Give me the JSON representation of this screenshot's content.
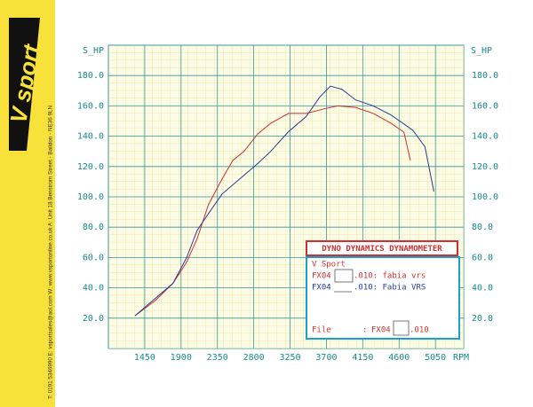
{
  "banner": {
    "logo": "V sport",
    "contact": "T: 0191 5346990   E: vsportsales@aol.com   W: www.vsportonline.co.uk   A: Unit 18 Benstrom Street - Baildon - NE36 9LN"
  },
  "chart_data": {
    "type": "line",
    "y_label": "S_HP",
    "x_label": "RPM",
    "xlim": [
      1000,
      5400
    ],
    "xticks": [
      1450,
      1900,
      2350,
      2800,
      3250,
      3700,
      4150,
      4600,
      5050
    ],
    "ylim": [
      0,
      200
    ],
    "yticks": [
      {
        "value": 20,
        "label": "20.0"
      },
      {
        "value": 40,
        "label": "40.0"
      },
      {
        "value": 60,
        "label": "60.0"
      },
      {
        "value": 80,
        "label": "80.0"
      },
      {
        "value": 100,
        "label": "100.0"
      },
      {
        "value": 120,
        "label": "120.0"
      },
      {
        "value": 140,
        "label": "140.0"
      },
      {
        "value": 160,
        "label": "160.0"
      },
      {
        "value": 180,
        "label": "180.0"
      }
    ],
    "grid": true,
    "series": [
      {
        "name": ".010: fabia vrs",
        "color": "#d03030",
        "x": [
          1330,
          1580,
          1800,
          1970,
          2100,
          2240,
          2410,
          2540,
          2680,
          2850,
          3010,
          3230,
          3450,
          3670,
          3840,
          4060,
          4280,
          4500,
          4660,
          4740
        ],
        "values": [
          21.6,
          31.6,
          43,
          57,
          72.5,
          95,
          112,
          124,
          130,
          141.5,
          148.5,
          155,
          155,
          158,
          160,
          159,
          155,
          148.5,
          142.7,
          124
        ]
      },
      {
        "name": ".010: Fabia VRS",
        "color": "#2a3a9a",
        "x": [
          1330,
          1580,
          1800,
          1970,
          2100,
          2240,
          2410,
          2630,
          2850,
          3010,
          3230,
          3450,
          3620,
          3750,
          3890,
          4060,
          4280,
          4500,
          4770,
          4920,
          5030
        ],
        "values": [
          21.6,
          33,
          43,
          60,
          78,
          89,
          102,
          112,
          122,
          130,
          143,
          153,
          166,
          173,
          171,
          164,
          160,
          154,
          144,
          133,
          103.5
        ]
      }
    ]
  },
  "panel": {
    "title": "DYNO DYNAMICS DYNAMOMETER",
    "customer": "V Sport",
    "run_prefix": "FX04",
    "file_label": "File",
    "file_separator": ":",
    "file_prefix": "FX04",
    "file_suffix": ".010"
  }
}
